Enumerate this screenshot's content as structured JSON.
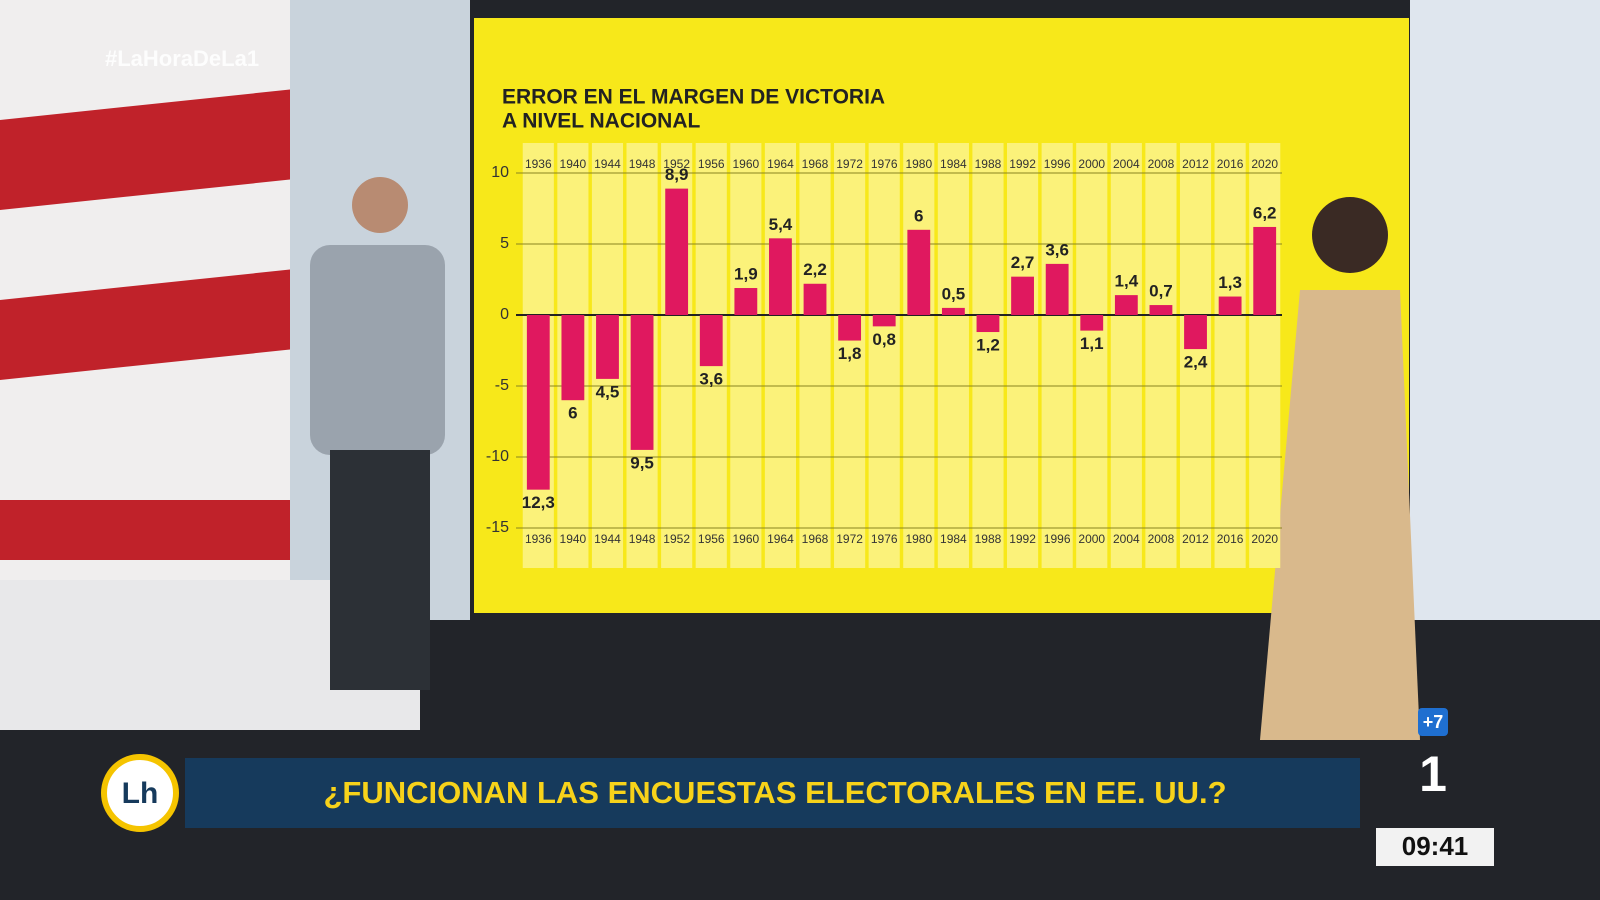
{
  "chart_data": {
    "type": "bar",
    "title": [
      "ERROR EN EL MARGEN DE VICTORIA",
      "A NIVEL NACIONAL"
    ],
    "categories": [
      "1936",
      "1940",
      "1944",
      "1948",
      "1952",
      "1956",
      "1960",
      "1964",
      "1968",
      "1972",
      "1976",
      "1980",
      "1984",
      "1988",
      "1992",
      "1996",
      "2000",
      "2004",
      "2008",
      "2012",
      "2016",
      "2020"
    ],
    "values": [
      -12.3,
      -6,
      -4.5,
      -9.5,
      8.9,
      -3.6,
      1.9,
      5.4,
      2.2,
      -1.8,
      -0.8,
      6,
      0.5,
      -1.2,
      2.7,
      3.6,
      -1.1,
      1.4,
      0.7,
      -2.4,
      1.3,
      6.2
    ],
    "value_labels": [
      "12,3",
      "6",
      "4,5",
      "9,5",
      "8,9",
      "3,6",
      "1,9",
      "5,4",
      "2,2",
      "1,8",
      "0,8",
      "6",
      "0,5",
      "1,2",
      "2,7",
      "3,6",
      "1,1",
      "1,4",
      "0,7",
      "2,4",
      "1,3",
      "6,2"
    ],
    "color": "#e0185f",
    "ylim": [
      -15,
      10
    ],
    "yticks": [
      10,
      5,
      0,
      -5,
      -10,
      -15
    ],
    "grid": true
  },
  "broadcast": {
    "hashtag": "#LaHoraDeLa1",
    "show_logo": "Lh",
    "headline": "¿FUNCIONAN LAS ENCUESTAS ELECTORALES EN  EE. UU.?",
    "channel": "1",
    "channel_badge": "+7",
    "clock": "09:41"
  }
}
